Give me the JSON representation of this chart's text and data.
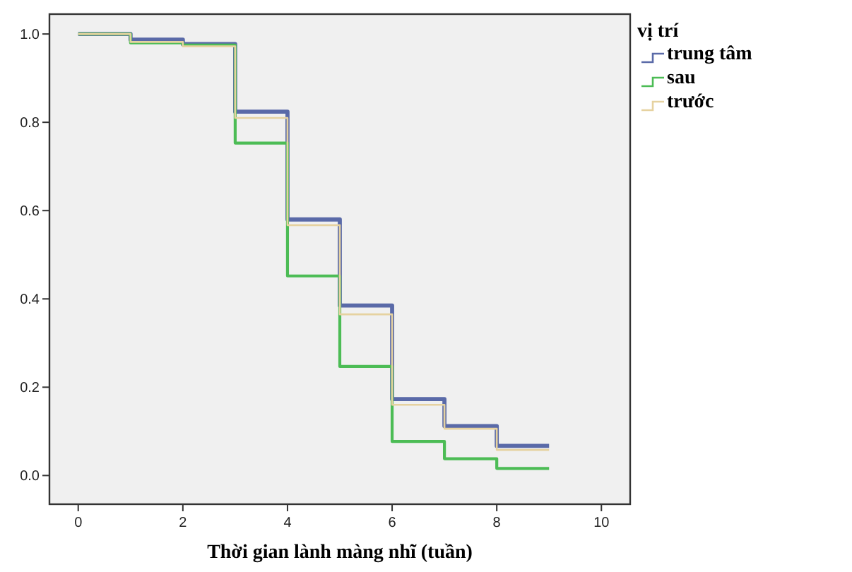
{
  "chart_data": {
    "type": "step",
    "xlabel": "Thời gian lành màng nhĩ (tuần)",
    "legend_title": "vị trí",
    "legend": "top right",
    "grid": false,
    "x": [
      0,
      1,
      2,
      3,
      4,
      5,
      6,
      7,
      8,
      9
    ],
    "xlim": [
      -0.55,
      10.55
    ],
    "xticks": [
      0,
      2,
      4,
      6,
      8,
      10
    ],
    "ylim": [
      -0.065,
      1.045
    ],
    "yticks": [
      {
        "value": 0,
        "label": "0.0"
      },
      {
        "value": 0.2,
        "label": "0.2"
      },
      {
        "value": 0.4,
        "label": "0.4"
      },
      {
        "value": 0.6,
        "label": "0.6"
      },
      {
        "value": 0.8,
        "label": "0.8"
      },
      {
        "value": 1,
        "label": "1.0"
      }
    ],
    "series": [
      {
        "name": "trung tâm",
        "color": "#5a6aa8",
        "values": [
          1,
          0.987,
          0.977,
          0.824,
          0.58,
          0.385,
          0.173,
          0.112,
          0.067,
          0.067
        ]
      },
      {
        "name": "sau",
        "color": "#4cbc55",
        "values": [
          1,
          0.98,
          0.975,
          0.753,
          0.452,
          0.247,
          0.077,
          0.038,
          0.016,
          0.016
        ]
      },
      {
        "name": "trước",
        "color": "#e6d2a0",
        "values": [
          1,
          0.982,
          0.972,
          0.81,
          0.567,
          0.365,
          0.16,
          0.106,
          0.058,
          0.058
        ]
      }
    ]
  }
}
